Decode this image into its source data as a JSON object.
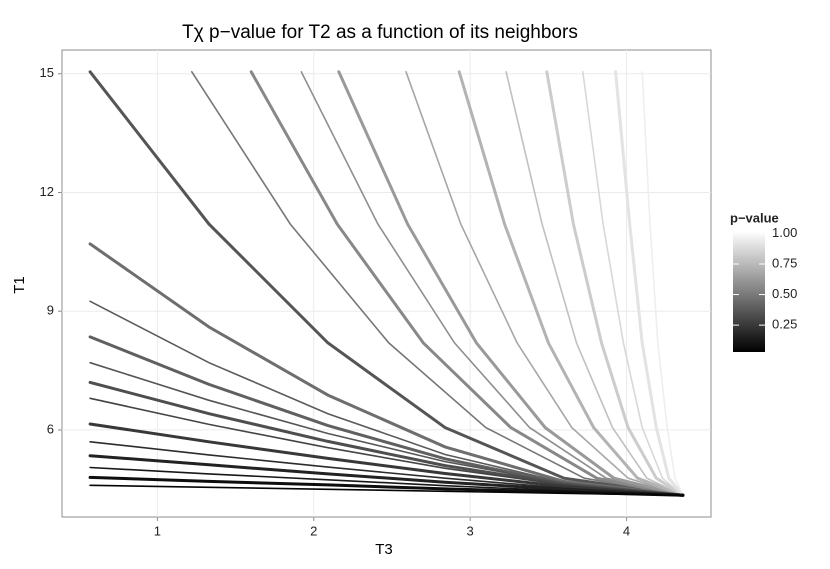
{
  "chart_data": {
    "type": "line",
    "title": "Tχ p−value for T2 as a function of its neighbors",
    "xlabel": "T3",
    "ylabel": "T1",
    "xlim": [
      0.39,
      4.54
    ],
    "ylim": [
      3.8,
      15.6
    ],
    "xticks": [
      1,
      2,
      3,
      4
    ],
    "yticks": [
      6,
      9,
      12,
      15
    ],
    "grid": true,
    "legend": {
      "title": "p−value",
      "low_color": "#000000",
      "high_color": "#ffffff",
      "clim": [
        0.03,
        1.02
      ],
      "ticks": [
        0.25,
        {
          "value": 0.5,
          "label": "0.50"
        },
        0.75,
        {
          "value": 1,
          "label": "1.00"
        }
      ]
    },
    "series": [
      {
        "color": "#555555",
        "x": [
          0.57,
          1.33,
          2.09,
          2.84,
          3.6,
          4.36
        ],
        "values": [
          15.05,
          11.2,
          8.2,
          6.06,
          4.78,
          4.35
        ]
      },
      {
        "color": "#777777",
        "x": [
          1.22,
          1.85,
          2.48,
          3.1,
          3.73,
          4.36
        ],
        "values": [
          15.05,
          11.2,
          8.2,
          6.06,
          4.78,
          4.35
        ]
      },
      {
        "color": "#888888",
        "x": [
          1.6,
          2.15,
          2.7,
          3.26,
          3.81,
          4.36
        ],
        "values": [
          15.05,
          11.2,
          8.2,
          6.06,
          4.78,
          4.35
        ]
      },
      {
        "color": "#8f8f8f",
        "x": [
          1.92,
          2.41,
          2.9,
          3.38,
          3.87,
          4.36
        ],
        "values": [
          15.05,
          11.2,
          8.2,
          6.06,
          4.78,
          4.35
        ]
      },
      {
        "color": "#999999",
        "x": [
          2.16,
          2.6,
          3.04,
          3.48,
          3.92,
          4.36
        ],
        "values": [
          15.05,
          11.2,
          8.2,
          6.06,
          4.78,
          4.35
        ]
      },
      {
        "color": "#a6a6a6",
        "x": [
          2.59,
          2.94,
          3.3,
          3.65,
          4.01,
          4.36
        ],
        "values": [
          15.05,
          11.2,
          8.2,
          6.06,
          4.78,
          4.35
        ]
      },
      {
        "color": "#b3b3b3",
        "x": [
          2.93,
          3.22,
          3.5,
          3.79,
          4.07,
          4.36
        ],
        "values": [
          15.05,
          11.2,
          8.2,
          6.06,
          4.78,
          4.35
        ]
      },
      {
        "color": "#c0c0c0",
        "x": [
          3.23,
          3.46,
          3.68,
          3.91,
          4.13,
          4.36
        ],
        "values": [
          15.05,
          11.2,
          8.2,
          6.06,
          4.78,
          4.35
        ]
      },
      {
        "color": "#cccccc",
        "x": [
          3.49,
          3.66,
          3.84,
          4.01,
          4.19,
          4.36
        ],
        "values": [
          15.05,
          11.2,
          8.2,
          6.06,
          4.78,
          4.35
        ]
      },
      {
        "color": "#d8d8d8",
        "x": [
          3.72,
          3.85,
          3.98,
          4.1,
          4.23,
          4.36
        ],
        "values": [
          15.05,
          11.2,
          8.2,
          6.06,
          4.78,
          4.35
        ]
      },
      {
        "color": "#e3e3e3",
        "x": [
          3.93,
          4.02,
          4.1,
          4.19,
          4.27,
          4.36
        ],
        "values": [
          15.05,
          11.2,
          8.2,
          6.06,
          4.78,
          4.35
        ]
      },
      {
        "color": "#eeeeee",
        "x": [
          4.1,
          4.15,
          4.2,
          4.26,
          4.31,
          4.36
        ],
        "values": [
          15.05,
          11.2,
          8.2,
          6.06,
          4.78,
          4.35
        ]
      },
      {
        "color": "#6e6e6e",
        "x": [
          0.57,
          1.33,
          2.09,
          2.84,
          3.6,
          4.36
        ],
        "values": [
          10.7,
          8.6,
          6.88,
          5.57,
          4.7,
          4.35
        ]
      },
      {
        "color": "#5a5a5a",
        "x": [
          0.57,
          1.33,
          2.09,
          2.84,
          3.6,
          4.36
        ],
        "values": [
          9.25,
          7.7,
          6.41,
          5.38,
          4.67,
          4.35
        ]
      },
      {
        "color": "#606060",
        "x": [
          0.57,
          1.33,
          2.09,
          2.84,
          3.6,
          4.36
        ],
        "values": [
          8.35,
          7.15,
          6.11,
          5.27,
          4.65,
          4.35
        ]
      },
      {
        "color": "#555555",
        "x": [
          0.57,
          1.33,
          2.09,
          2.84,
          3.6,
          4.36
        ],
        "values": [
          7.7,
          6.75,
          5.91,
          5.2,
          4.65,
          4.35
        ]
      },
      {
        "color": "#4e4e4e",
        "x": [
          0.57,
          1.33,
          2.09,
          2.84,
          3.6,
          4.36
        ],
        "values": [
          7.2,
          6.41,
          5.71,
          5.1,
          4.63,
          4.35
        ]
      },
      {
        "color": "#444444",
        "x": [
          0.57,
          1.33,
          2.09,
          2.84,
          3.6,
          4.36
        ],
        "values": [
          6.8,
          6.14,
          5.55,
          5.03,
          4.61,
          4.35
        ]
      },
      {
        "color": "#383838",
        "x": [
          0.57,
          1.33,
          2.09,
          2.84,
          3.6,
          4.36
        ],
        "values": [
          6.15,
          5.7,
          5.28,
          4.9,
          4.57,
          4.35
        ]
      },
      {
        "color": "#2c2c2c",
        "x": [
          0.57,
          1.33,
          2.09,
          2.84,
          3.6,
          4.36
        ],
        "values": [
          5.7,
          5.37,
          5.06,
          4.78,
          4.53,
          4.35
        ]
      },
      {
        "color": "#222222",
        "x": [
          0.57,
          1.33,
          2.09,
          2.84,
          3.6,
          4.36
        ],
        "values": [
          5.35,
          5.12,
          4.89,
          4.68,
          4.5,
          4.35
        ]
      },
      {
        "color": "#181818",
        "x": [
          0.57,
          1.33,
          2.09,
          2.84,
          3.6,
          4.36
        ],
        "values": [
          5.05,
          4.89,
          4.74,
          4.59,
          4.46,
          4.35
        ]
      },
      {
        "color": "#0e0e0e",
        "x": [
          0.57,
          1.33,
          2.09,
          2.84,
          3.6,
          4.36
        ],
        "values": [
          4.8,
          4.7,
          4.61,
          4.51,
          4.43,
          4.35
        ]
      },
      {
        "color": "#050505",
        "x": [
          0.57,
          1.33,
          2.09,
          2.84,
          3.6,
          4.36
        ],
        "values": [
          4.6,
          4.55,
          4.5,
          4.45,
          4.4,
          4.35
        ]
      }
    ]
  }
}
